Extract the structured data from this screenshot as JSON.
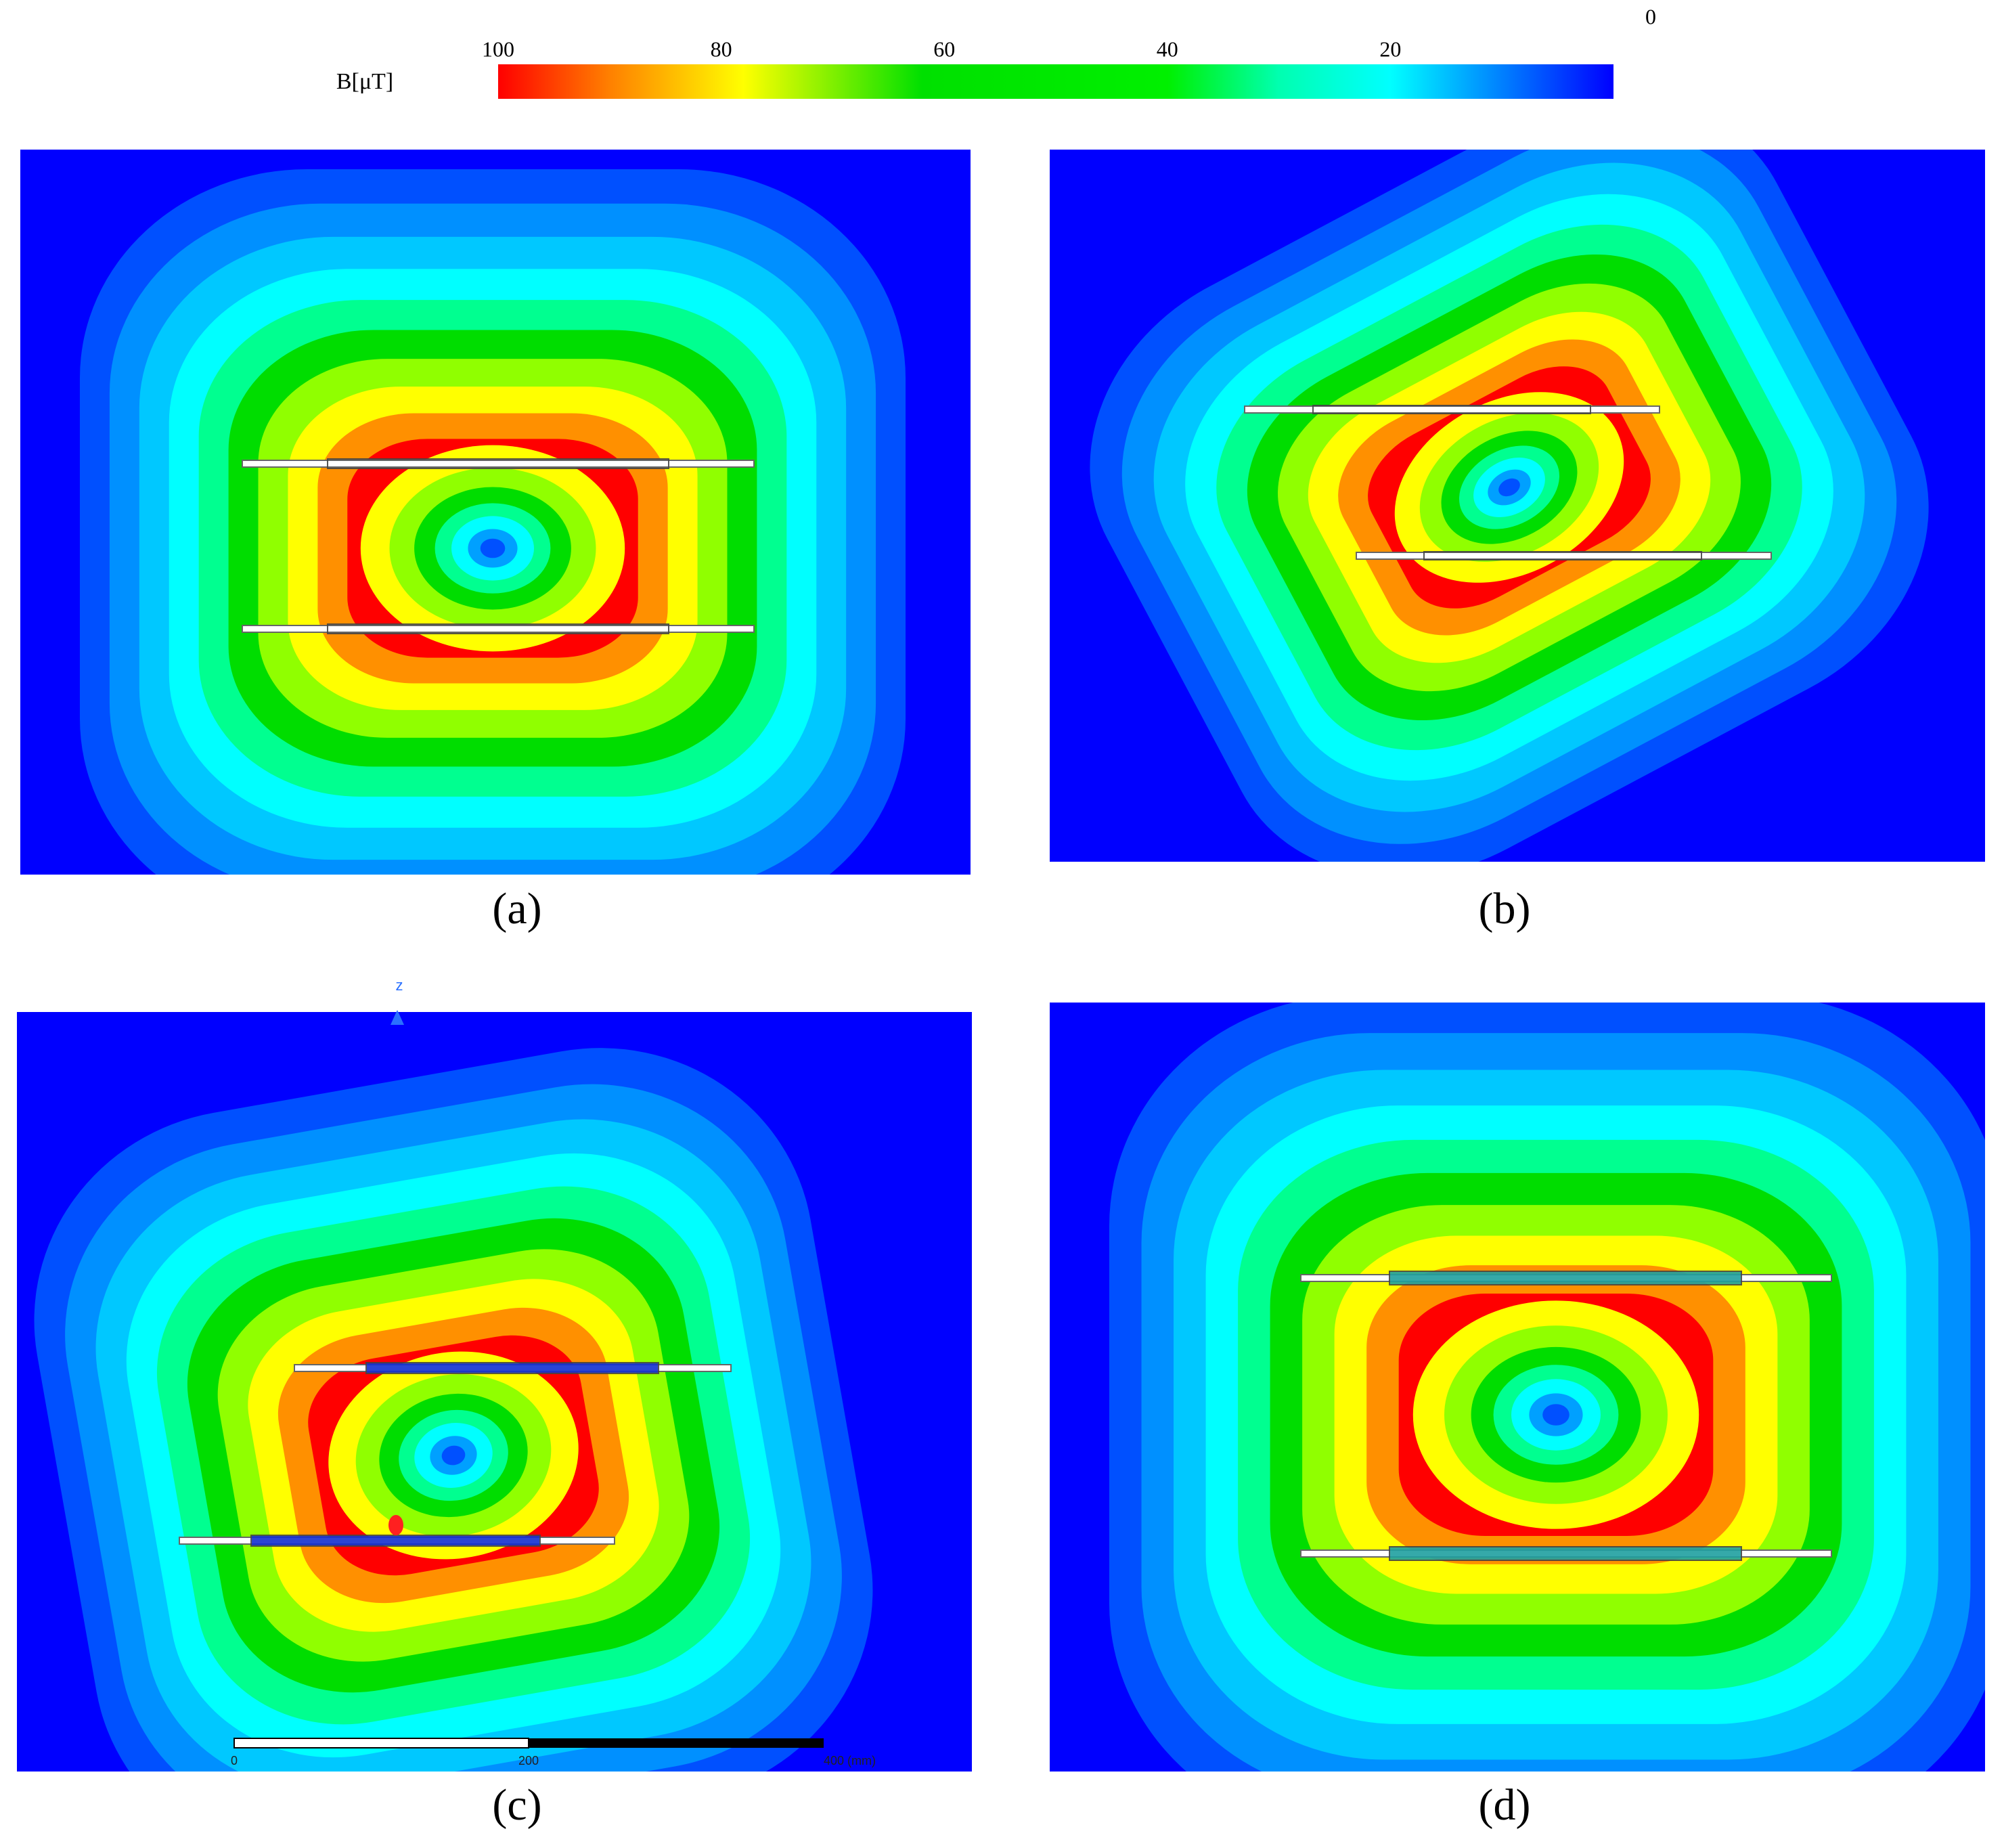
{
  "colorbar": {
    "label": "B[μT]",
    "ticks": [
      100,
      80,
      60,
      40,
      20,
      0
    ]
  },
  "panels": [
    {
      "caption": "(a)"
    },
    {
      "caption": "(b)"
    },
    {
      "caption": "(c)"
    },
    {
      "caption": "(d)"
    }
  ],
  "axis_label": "z",
  "scale_bar": {
    "labels": [
      "0",
      "200",
      "400 (mm)"
    ]
  }
}
